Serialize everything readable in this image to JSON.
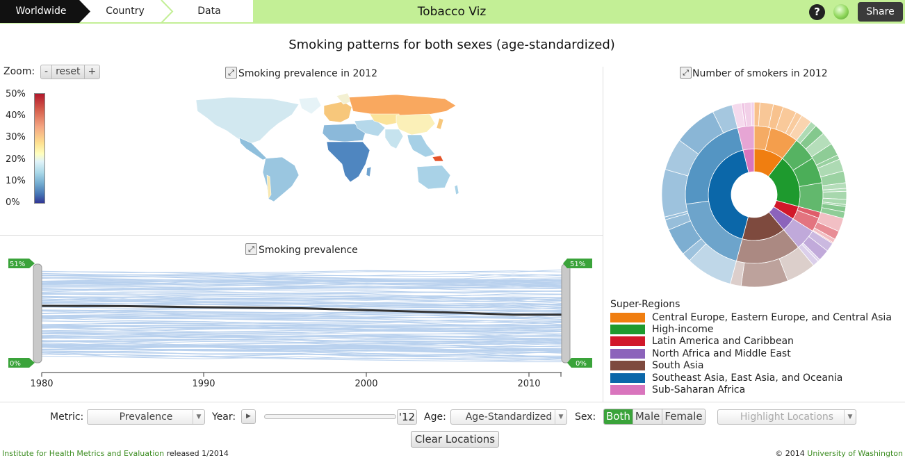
{
  "nav": {
    "crumbs": [
      "Worldwide",
      "Country",
      "Data"
    ],
    "title": "Tobacco Viz",
    "help_label": "?",
    "share_label": "Share"
  },
  "page_title": "Smoking patterns for both sexes (age-standardized)",
  "map_panel": {
    "zoom_label": "Zoom:",
    "zoom_minus": "-",
    "zoom_reset": "reset",
    "zoom_plus": "+",
    "title": "Smoking prevalence in 2012",
    "scale_ticks": [
      "50%",
      "40%",
      "30%",
      "20%",
      "10%",
      "0%"
    ]
  },
  "trend_panel": {
    "title": "Smoking prevalence",
    "handle_top": "51%",
    "handle_bottom": "0%",
    "handle_top_right": "51%",
    "handle_bottom_right": "0%",
    "x_ticks": [
      "1980",
      "1990",
      "2000",
      "2010"
    ],
    "mean_line": [
      {
        "year": 1980,
        "value": 29.4
      },
      {
        "year": 1985,
        "value": 29.3
      },
      {
        "year": 1990,
        "value": 28.7
      },
      {
        "year": 1996,
        "value": 28.2
      },
      {
        "year": 2000,
        "value": 27.2
      },
      {
        "year": 2006,
        "value": 25.8
      },
      {
        "year": 2009,
        "value": 24.9
      },
      {
        "year": 2012,
        "value": 24.9
      }
    ]
  },
  "sunburst_panel": {
    "title": "Number of smokers in 2012"
  },
  "legend": {
    "title": "Super-Regions",
    "items": [
      {
        "label": "Central Europe, Eastern Europe, and Central Asia",
        "color": "#f07e10"
      },
      {
        "label": "High-income",
        "color": "#1e9a2e"
      },
      {
        "label": "Latin America and Caribbean",
        "color": "#d1182a"
      },
      {
        "label": "North Africa and Middle East",
        "color": "#8c63bb"
      },
      {
        "label": "South Asia",
        "color": "#7e4a3e"
      },
      {
        "label": "Southeast Asia, East Asia, and Oceania",
        "color": "#0b67a9"
      },
      {
        "label": "Sub-Saharan Africa",
        "color": "#d975bd"
      }
    ]
  },
  "controls": {
    "metric_label": "Metric:",
    "metric_value": "Prevalence",
    "year_label": "Year:",
    "year_value": "'12",
    "age_label": "Age:",
    "age_value": "Age-Standardized",
    "sex_label": "Sex:",
    "sex_options": [
      "Both",
      "Male",
      "Female"
    ],
    "highlight_placeholder": "Highlight Locations",
    "clear_label": "Clear Locations"
  },
  "footer": {
    "org": "Institute for Health Metrics and Evaluation",
    "released": " released 1/2014",
    "copyright": "© 2014 ",
    "university": "University of Washington"
  }
}
